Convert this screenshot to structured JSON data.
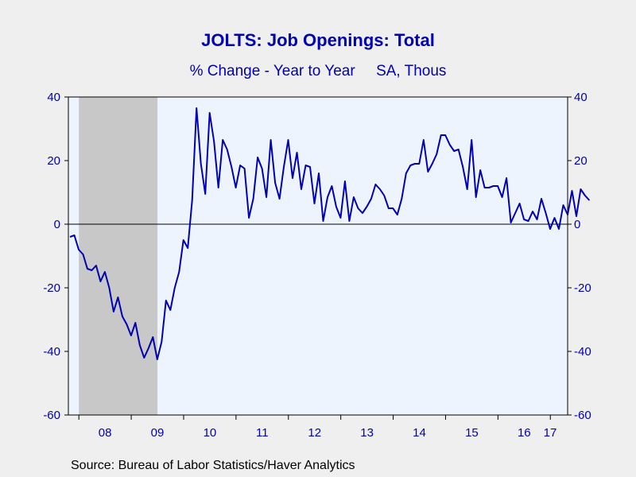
{
  "chart_data": {
    "type": "line",
    "title": "JOLTS: Job Openings: Total",
    "subtitle": "% Change - Year to Year     SA, Thous",
    "source": "Source:  Bureau of Labor Statistics/Haver Analytics",
    "xlabel": "",
    "ylabel": "",
    "ylim": [
      -60,
      40
    ],
    "yticks": [
      -60,
      -40,
      -20,
      0,
      20,
      40
    ],
    "x_range": [
      2007.8,
      2017.33
    ],
    "x_tick_labels": [
      {
        "label": "08",
        "x": 2008.5
      },
      {
        "label": "09",
        "x": 2009.5
      },
      {
        "label": "10",
        "x": 2010.5
      },
      {
        "label": "11",
        "x": 2011.5
      },
      {
        "label": "12",
        "x": 2012.5
      },
      {
        "label": "13",
        "x": 2013.5
      },
      {
        "label": "14",
        "x": 2014.5
      },
      {
        "label": "15",
        "x": 2015.5
      },
      {
        "label": "16",
        "x": 2016.5
      },
      {
        "label": "17",
        "x": 2017.5
      }
    ],
    "recession_shading": {
      "start": 2008.0,
      "end": 2009.5,
      "color": "#c8c8c8"
    },
    "plot_background": "#eef4fd",
    "line_color": "#0000b4",
    "zero_line": true,
    "grid": false,
    "series": [
      {
        "x_start": 2007.83,
        "x_step": 0.08333,
        "values": [
          -4,
          -3.5,
          -8,
          -9.5,
          -14,
          -14.5,
          -13,
          -18,
          -15,
          -20,
          -27.5,
          -23,
          -29,
          -31.5,
          -35,
          -31,
          -38,
          -42,
          -39,
          -35.5,
          -42.5,
          -37,
          -24,
          -27,
          -20,
          -15,
          -5,
          -7.5,
          7.5,
          36.5,
          19,
          9.5,
          35,
          26,
          11.5,
          26.5,
          23.5,
          18,
          11.5,
          18.5,
          17.5,
          2,
          8,
          21,
          17.5,
          8.5,
          26.5,
          13,
          8,
          18,
          26.5,
          14.5,
          22.5,
          11,
          18.5,
          18,
          6.5,
          16,
          1,
          8.5,
          12,
          5.5,
          2,
          13.5,
          1,
          8.5,
          5,
          3.5,
          5.5,
          8,
          12.5,
          11,
          9,
          5,
          5,
          3,
          8,
          16,
          18.5,
          19,
          19,
          26.5,
          16.5,
          19,
          22,
          28,
          28,
          25,
          23,
          23.5,
          18,
          11,
          26.5,
          8.5,
          17,
          11.5,
          11.5,
          12,
          12,
          8.5,
          14.5,
          0.5,
          3.5,
          6.5,
          1.5,
          1,
          4,
          1.5,
          8,
          3.5,
          -1.5,
          2,
          -1.5,
          6,
          3,
          10.5,
          2.5,
          11,
          9,
          7.5
        ]
      }
    ]
  }
}
